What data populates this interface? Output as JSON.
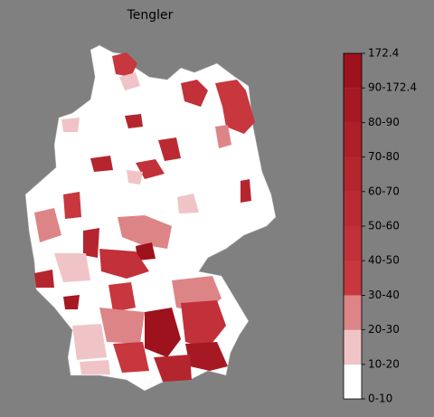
{
  "title": "Tengler",
  "colorbar": {
    "labels": [
      "0-10",
      "10-20",
      "20-30",
      "30-40",
      "40-50",
      "50-60",
      "60-70",
      "70-80",
      "80-90",
      "90-172.4",
      "172.4"
    ],
    "colors": [
      "#ffffff",
      "#f0c4c6",
      "#dd8487",
      "#c8363e",
      "#c23039",
      "#bb2a33",
      "#b5252e",
      "#ae1f29",
      "#a61923",
      "#9e121d"
    ]
  }
}
